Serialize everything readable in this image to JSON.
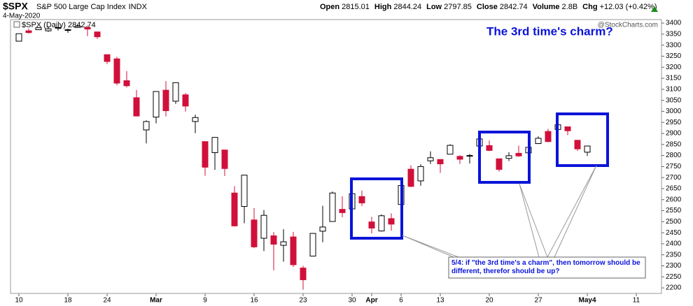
{
  "chart_data": {
    "type": "candlestick",
    "symbol": "$SPX",
    "name": "S&P 500 Large Cap Index",
    "exchange": "INDX",
    "date": "4-May-2020",
    "quote": [
      {
        "label": "Open",
        "value": "2815.01"
      },
      {
        "label": "High",
        "value": "2844.24"
      },
      {
        "label": "Low",
        "value": "2797.85"
      },
      {
        "label": "Close",
        "value": "2842.74"
      },
      {
        "label": "Volume",
        "value": "2.8B"
      },
      {
        "label": "Chg",
        "value": "+12.03 (+0.42%)"
      }
    ],
    "legend": "$SPX (Daily) 2842.74",
    "watermark": "@StockCharts.com",
    "title": "The 3rd time's charm?",
    "annotation": "5/4: if \"the 3rd time's a charm\", then tomorrow should be different, therefor should be up?",
    "up_color": "#ffffff",
    "down_color": "#d0103a",
    "x": [
      "2020-02-10",
      "2020-02-11",
      "2020-02-12",
      "2020-02-13",
      "2020-02-14",
      "2020-02-18",
      "2020-02-19",
      "2020-02-20",
      "2020-02-21",
      "2020-02-24",
      "2020-02-25",
      "2020-02-26",
      "2020-02-27",
      "2020-02-28",
      "2020-03-02",
      "2020-03-03",
      "2020-03-04",
      "2020-03-05",
      "2020-03-06",
      "2020-03-09",
      "2020-03-10",
      "2020-03-11",
      "2020-03-12",
      "2020-03-13",
      "2020-03-16",
      "2020-03-17",
      "2020-03-18",
      "2020-03-19",
      "2020-03-20",
      "2020-03-23",
      "2020-03-24",
      "2020-03-25",
      "2020-03-26",
      "2020-03-27",
      "2020-03-30",
      "2020-03-31",
      "2020-04-01",
      "2020-04-02",
      "2020-04-03",
      "2020-04-06",
      "2020-04-07",
      "2020-04-08",
      "2020-04-09",
      "2020-04-13",
      "2020-04-14",
      "2020-04-15",
      "2020-04-16",
      "2020-04-17",
      "2020-04-20",
      "2020-04-21",
      "2020-04-22",
      "2020-04-23",
      "2020-04-24",
      "2020-04-27",
      "2020-04-28",
      "2020-04-29",
      "2020-04-30",
      "2020-05-01",
      "2020-05-04"
    ],
    "open": [
      3318,
      3365,
      3370,
      3365,
      3378,
      3370,
      3380,
      3380,
      3360,
      3257,
      3238,
      3139,
      3062,
      2916,
      2974,
      3096,
      3046,
      3075,
      2954,
      2863,
      2813,
      2825,
      2630,
      2569,
      2508,
      2425,
      2436,
      2393,
      2431,
      2290,
      2344,
      2457,
      2501,
      2556,
      2558,
      2614,
      2499,
      2458,
      2514,
      2578,
      2738,
      2685,
      2776,
      2782,
      2806,
      2796,
      2799,
      2843,
      2845,
      2785,
      2787,
      2810,
      2812,
      2854,
      2909,
      2918,
      2930,
      2869,
      2815
    ],
    "high": [
      3352,
      3375,
      3381,
      3385,
      3380,
      3375,
      3393,
      3389,
      3360,
      3259,
      3247,
      3182,
      3097,
      2959,
      3091,
      3137,
      3130,
      3083,
      2985,
      2863,
      2883,
      2825,
      2661,
      2711,
      2562,
      2553,
      2453,
      2466,
      2454,
      2300,
      2449,
      2572,
      2637,
      2615,
      2631,
      2641,
      2522,
      2533,
      2538,
      2677,
      2756,
      2760,
      2819,
      2782,
      2851,
      2802,
      2807,
      2880,
      2868,
      2785,
      2815,
      2844,
      2842,
      2887,
      2921,
      2954,
      2930,
      2869,
      2844
    ],
    "low": [
      3317,
      3352,
      3369,
      3360,
      3366,
      3356,
      3378,
      3341,
      3328,
      3214,
      3118,
      3108,
      2977,
      2855,
      2946,
      2977,
      3034,
      2999,
      2901,
      2708,
      2735,
      2707,
      2478,
      2493,
      2380,
      2367,
      2280,
      2319,
      2295,
      2192,
      2344,
      2407,
      2500,
      2520,
      2545,
      2571,
      2447,
      2455,
      2459,
      2574,
      2657,
      2663,
      2762,
      2721,
      2805,
      2762,
      2764,
      2842,
      2820,
      2727,
      2775,
      2794,
      2791,
      2852,
      2860,
      2912,
      2892,
      2821,
      2798
    ],
    "close": [
      3352,
      3357,
      3379,
      3374,
      3380,
      3370,
      3386,
      3373,
      3338,
      3226,
      3128,
      3116,
      2979,
      2954,
      3090,
      3003,
      3130,
      3024,
      2972,
      2747,
      2882,
      2741,
      2481,
      2711,
      2386,
      2529,
      2398,
      2409,
      2305,
      2237,
      2447,
      2476,
      2630,
      2541,
      2627,
      2585,
      2471,
      2527,
      2489,
      2664,
      2660,
      2750,
      2790,
      2762,
      2846,
      2783,
      2800,
      2875,
      2823,
      2737,
      2799,
      2798,
      2837,
      2878,
      2863,
      2939,
      2912,
      2830,
      2843
    ],
    "xticks": [
      {
        "value": "2020-02-10",
        "label": "10"
      },
      {
        "value": "2020-02-18",
        "label": "18"
      },
      {
        "value": "2020-02-24",
        "label": "24"
      },
      {
        "value": "2020-03-02",
        "label": "Mar"
      },
      {
        "value": "2020-03-09",
        "label": "9"
      },
      {
        "value": "2020-03-16",
        "label": "16"
      },
      {
        "value": "2020-03-23",
        "label": "23"
      },
      {
        "value": "2020-03-30",
        "label": "30"
      },
      {
        "value": "2020-04-01",
        "label": "Apr"
      },
      {
        "value": "2020-04-06",
        "label": "6"
      },
      {
        "value": "2020-04-13",
        "label": "13"
      },
      {
        "value": "2020-04-20",
        "label": "20"
      },
      {
        "value": "2020-04-27",
        "label": "27"
      },
      {
        "value": "2020-05-04",
        "label": "May4"
      },
      {
        "value": "2020-05-11",
        "label": "11"
      }
    ],
    "ylim": [
      2175,
      3416
    ],
    "yticks": [
      2200,
      2250,
      2300,
      2350,
      2400,
      2450,
      2500,
      2550,
      2600,
      2650,
      2700,
      2750,
      2800,
      2850,
      2900,
      2950,
      3000,
      3050,
      3100,
      3150,
      3200,
      3250,
      3300,
      3350,
      3400
    ],
    "grid": false
  }
}
